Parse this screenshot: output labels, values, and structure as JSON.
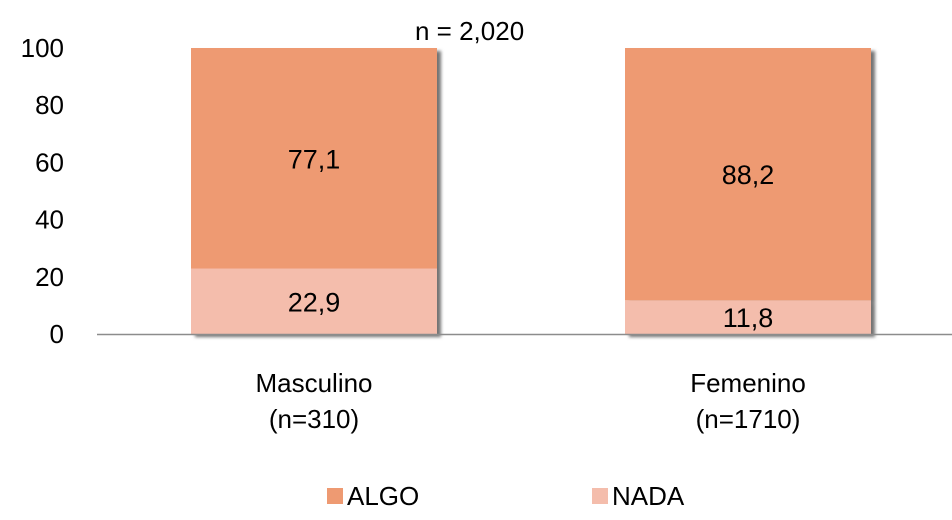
{
  "chart_data": {
    "type": "bar",
    "stacked": true,
    "annotation": "n =  2,020",
    "categories": [
      [
        "Masculino",
        "(n=310)"
      ],
      [
        "Femenino",
        "(n=1710)"
      ]
    ],
    "series": [
      {
        "name": "NADA",
        "values": [
          22.9,
          11.8
        ],
        "labels": [
          "22,9",
          "11,8"
        ],
        "color": "#F4BDAC"
      },
      {
        "name": "ALGO",
        "values": [
          77.1,
          88.2
        ],
        "labels": [
          "77,1",
          "88,2"
        ],
        "color": "#EE9A72"
      }
    ],
    "ylim": [
      0,
      100
    ],
    "yticks": [
      0,
      20,
      40,
      60,
      80,
      100
    ],
    "grid": false,
    "legend_position": "bottom"
  }
}
